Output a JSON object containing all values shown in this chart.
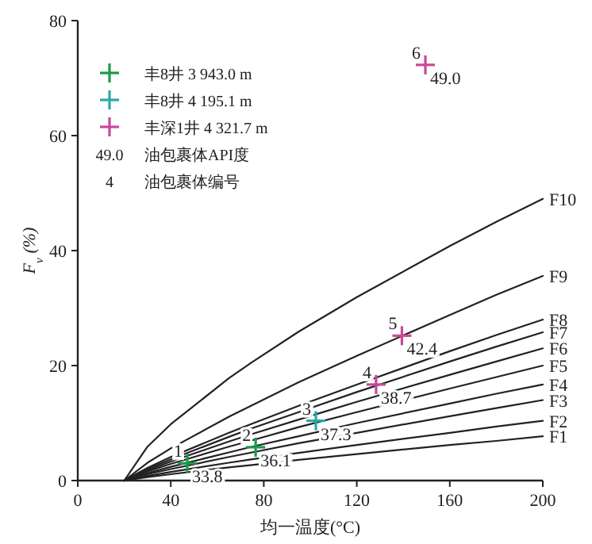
{
  "chart_data": {
    "type": "line",
    "xlabel": "均一温度(°C)",
    "ylabel": "F$_{v}$ (%)",
    "xlim": [
      0,
      200
    ],
    "ylim": [
      0,
      80
    ],
    "xticks": [
      0,
      40,
      80,
      120,
      160,
      200
    ],
    "yticks": [
      0,
      20,
      40,
      60,
      80
    ],
    "grid": false,
    "legend": "top left",
    "line_style": "solid",
    "marker": "none",
    "series": [
      {
        "name": "F1",
        "color": "#222222",
        "x": [
          20,
          30,
          40,
          65,
          75,
          95,
          120,
          160,
          180,
          200
        ],
        "values": [
          0,
          0.6,
          1.1,
          2.3,
          2.7,
          3.6,
          4.6,
          6.2,
          6.9,
          7.7
        ]
      },
      {
        "name": "F2",
        "color": "#222222",
        "x": [
          20,
          30,
          40,
          65,
          75,
          95,
          120,
          160,
          180,
          200
        ],
        "values": [
          0,
          0.8,
          1.5,
          3.1,
          3.7,
          4.8,
          6.2,
          8.3,
          9.4,
          10.4
        ]
      },
      {
        "name": "F3",
        "color": "#222222",
        "x": [
          20,
          30,
          40,
          65,
          75,
          95,
          120,
          160,
          180,
          200
        ],
        "values": [
          0,
          1.1,
          2.0,
          4.1,
          4.9,
          6.5,
          8.3,
          11.2,
          12.6,
          14.0
        ]
      },
      {
        "name": "F4",
        "color": "#222222",
        "x": [
          20,
          30,
          40,
          65,
          75,
          95,
          120,
          160,
          180,
          200
        ],
        "values": [
          0,
          1.3,
          2.4,
          4.9,
          5.9,
          7.7,
          10.0,
          13.4,
          15.1,
          16.7
        ]
      },
      {
        "name": "F5",
        "color": "#222222",
        "x": [
          20,
          30,
          40,
          65,
          75,
          95,
          120,
          160,
          180,
          200
        ],
        "values": [
          0,
          1.6,
          2.9,
          5.9,
          7.0,
          9.3,
          11.9,
          16.0,
          18.0,
          20.0
        ]
      },
      {
        "name": "F6",
        "color": "#222222",
        "x": [
          20,
          30,
          40,
          65,
          75,
          95,
          120,
          160,
          180,
          200
        ],
        "values": [
          0,
          1.8,
          3.3,
          6.8,
          8.1,
          10.6,
          13.7,
          18.4,
          20.7,
          23.0
        ]
      },
      {
        "name": "F7",
        "color": "#222222",
        "x": [
          20,
          30,
          40,
          65,
          75,
          95,
          120,
          160,
          180,
          200
        ],
        "values": [
          0,
          2.0,
          3.7,
          7.6,
          9.1,
          11.9,
          15.4,
          20.7,
          23.3,
          25.8
        ]
      },
      {
        "name": "F8",
        "color": "#222222",
        "x": [
          20,
          30,
          40,
          65,
          75,
          95,
          120,
          160,
          180,
          200
        ],
        "values": [
          0,
          2.2,
          4.1,
          8.3,
          9.9,
          13.0,
          16.7,
          22.5,
          25.3,
          28.0
        ]
      },
      {
        "name": "F9",
        "color": "#222222",
        "x": [
          20,
          30,
          40,
          65,
          75,
          95,
          120,
          160,
          180,
          200
        ],
        "values": [
          0,
          3.1,
          5.6,
          11.1,
          13.1,
          17.1,
          21.7,
          28.8,
          32.3,
          35.6
        ]
      },
      {
        "name": "F10",
        "color": "#222222",
        "x": [
          20,
          30,
          40,
          65,
          75,
          95,
          120,
          160,
          180,
          200
        ],
        "values": [
          0,
          5.9,
          9.8,
          17.8,
          20.6,
          25.9,
          31.9,
          40.8,
          45.0,
          49.0
        ]
      },
      {
        "name": "丰8井 3 943.0 m",
        "type": "scatter",
        "marker": "cross",
        "color": "#1a9a4a",
        "x": [
          47.1,
          76.5
        ],
        "values": [
          3.0,
          5.8
        ]
      },
      {
        "name": "丰8井  4 195.1 m",
        "type": "scatter",
        "marker": "cross",
        "color": "#2aa8a8",
        "x": [
          102.4
        ],
        "values": [
          10.4
        ]
      },
      {
        "name": "丰深1井 4 321.7 m",
        "type": "scatter",
        "marker": "cross",
        "color": "#c8489a",
        "x": [
          128.3,
          139.4,
          149.5
        ],
        "values": [
          16.7,
          25.2,
          72.3
        ]
      }
    ],
    "annotations": [
      "49.0 油包裹体API度",
      "4 油包裹体编号",
      {
        "text": "1",
        "x": 47.1,
        "y": 3.0
      },
      {
        "text": "33.8",
        "x": 47.1,
        "y": 3.0
      },
      {
        "text": "2",
        "x": 76.5,
        "y": 5.8
      },
      {
        "text": "36.1",
        "x": 76.5,
        "y": 5.8
      },
      {
        "text": "3",
        "x": 102.4,
        "y": 10.4
      },
      {
        "text": "37.3",
        "x": 102.4,
        "y": 10.4
      },
      {
        "text": "4",
        "x": 128.3,
        "y": 16.7
      },
      {
        "text": "38.7",
        "x": 128.3,
        "y": 16.7
      },
      {
        "text": "5",
        "x": 139.4,
        "y": 25.2
      },
      {
        "text": "42.4",
        "x": 139.4,
        "y": 25.2
      },
      {
        "text": "6",
        "x": 149.5,
        "y": 72.3
      },
      {
        "text": "49.0",
        "x": 149.5,
        "y": 72.3
      }
    ]
  }
}
